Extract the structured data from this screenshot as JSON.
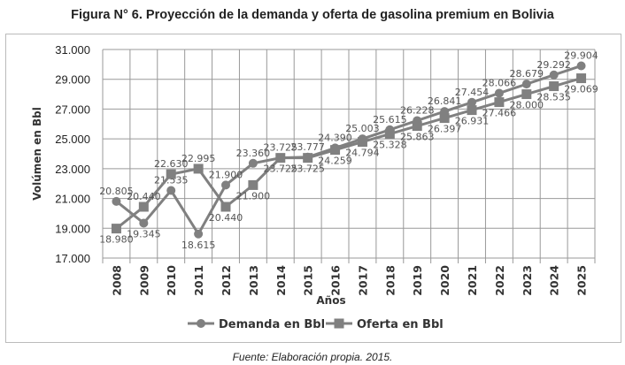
{
  "chart_data": {
    "type": "line",
    "title": "Figura N° 6.  Proyección de la demanda y oferta de gasolina premium en Bolivia",
    "xlabel": "Años",
    "ylabel": "Volúmen en Bbl",
    "ylim": [
      17000,
      31000
    ],
    "yticks": [
      "17.000",
      "19.000",
      "21.000",
      "23.000",
      "25.000",
      "27.000",
      "29.000",
      "31.000"
    ],
    "ytick_values": [
      17000,
      19000,
      21000,
      23000,
      25000,
      27000,
      29000,
      31000
    ],
    "grid": true,
    "legend_position": "bottom",
    "categories": [
      "2008",
      "2009",
      "2010",
      "2011",
      "2012",
      "2013",
      "2014",
      "2015",
      "2016",
      "2017",
      "2018",
      "2019",
      "2020",
      "2021",
      "2022",
      "2023",
      "2024",
      "2025"
    ],
    "series": [
      {
        "name": "Demanda en Bbl",
        "marker": "circle",
        "color": "#808080",
        "values": [
          20805,
          19345,
          21535,
          18615,
          21900,
          23360,
          23725,
          23777,
          24390,
          25003,
          25615,
          26228,
          26841,
          27454,
          28066,
          28679,
          29292,
          29904
        ],
        "labels": [
          "20.805",
          "19.345",
          "21.535",
          "18.615",
          "21.900",
          "23.360",
          "23.725",
          "23.777",
          "24.390",
          "25.003",
          "25.615",
          "26.228",
          "26.841",
          "27.454",
          "28.066",
          "28.679",
          "29.292",
          "29.904"
        ]
      },
      {
        "name": "Oferta en Bbl",
        "marker": "square",
        "color": "#808080",
        "values": [
          18980,
          20440,
          22630,
          22995,
          20440,
          21900,
          23725,
          23725,
          24259,
          24794,
          25328,
          25863,
          26397,
          26931,
          27466,
          28000,
          28535,
          29069
        ],
        "labels": [
          "18.980",
          "20.440",
          "22.630",
          "22.995",
          "20.440",
          "21.900",
          "23.725",
          "23.725",
          "24.259",
          "24.794",
          "25.328",
          "25.863",
          "26.397",
          "26.931",
          "27.466",
          "28.000",
          "28.535",
          "29.069"
        ]
      }
    ]
  },
  "source": "Fuente: Elaboración propia. 2015."
}
